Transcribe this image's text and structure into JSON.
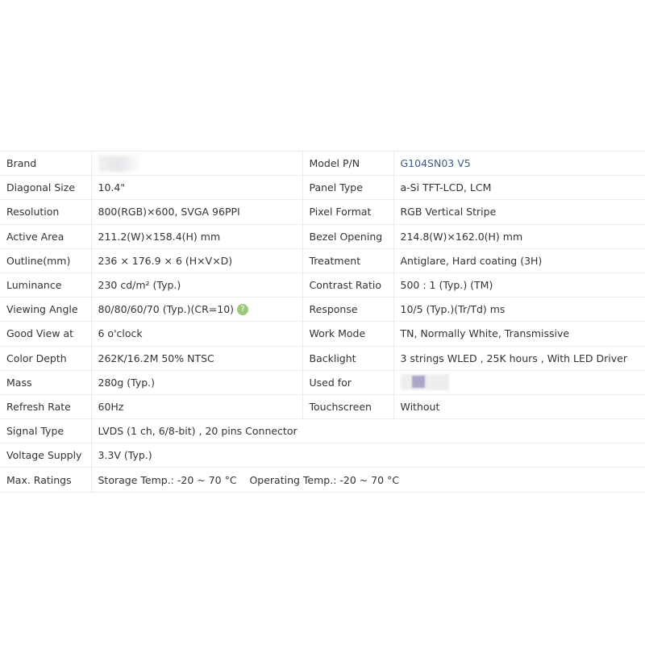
{
  "rows": [
    {
      "l1": "Brand",
      "v1": "",
      "l2": "Model P/N",
      "v2": "G104SN03 V5"
    },
    {
      "l1": "Diagonal Size",
      "v1": "10.4\"",
      "l2": "Panel Type",
      "v2": "a-Si TFT-LCD, LCM"
    },
    {
      "l1": "Resolution",
      "v1": "800(RGB)×600, SVGA  96PPI",
      "l2": "Pixel Format",
      "v2": "RGB Vertical Stripe"
    },
    {
      "l1": "Active Area",
      "v1": "211.2(W)×158.4(H) mm",
      "l2": "Bezel Opening",
      "v2": "214.8(W)×162.0(H) mm"
    },
    {
      "l1": "Outline(mm)",
      "v1": "236 × 176.9 × 6 (H×V×D)",
      "l2": "Treatment",
      "v2": "Antiglare, Hard coating (3H)"
    },
    {
      "l1": "Luminance",
      "v1": "230 cd/m² (Typ.)",
      "l2": "Contrast Ratio",
      "v2": "500 : 1 (Typ.) (TM)"
    },
    {
      "l1": "Viewing Angle",
      "v1": "80/80/60/70 (Typ.)(CR=10)",
      "l2": "Response",
      "v2": "10/5 (Typ.)(Tr/Td) ms"
    },
    {
      "l1": "Good View at",
      "v1": "6 o'clock",
      "l2": "Work Mode",
      "v2": "TN, Normally White, Transmissive"
    },
    {
      "l1": "Color Depth",
      "v1": "262K/16.2M   50% NTSC",
      "l2": "Backlight",
      "v2": "3 strings WLED , 25K hours , With LED Driver"
    },
    {
      "l1": "Mass",
      "v1": "280g (Typ.)",
      "l2": "Used for",
      "v2": ""
    },
    {
      "l1": "Refresh Rate",
      "v1": "60Hz",
      "l2": "Touchscreen",
      "v2": "Without"
    },
    {
      "l1": "Signal Type",
      "v1": "LVDS (1 ch, 6/8-bit) , 20 pins Connector"
    },
    {
      "l1": "Voltage Supply",
      "v1": "3.3V (Typ.)"
    },
    {
      "l1": "Max. Ratings",
      "v1": "Storage Temp.: -20 ~ 70 °C    Operating Temp.: -20 ~ 70 °C"
    }
  ],
  "help_icon": "question-mark-circle",
  "colors": {
    "model_value": "#3b5a86",
    "help_icon": "#9cca7a"
  }
}
